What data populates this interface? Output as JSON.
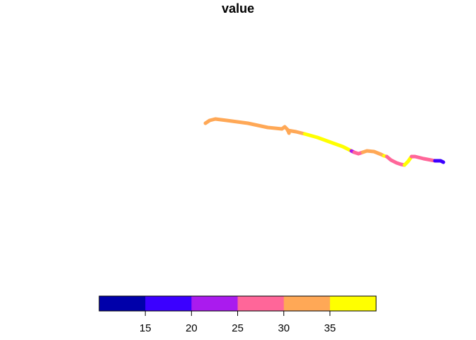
{
  "title": "value",
  "legend": {
    "breaks": [
      10,
      15,
      20,
      25,
      30,
      35,
      40
    ],
    "colors": [
      "#0000AA",
      "#3B00FF",
      "#AA1BEE",
      "#FF6699",
      "#FFA856",
      "#FFFF00"
    ],
    "tick_labels": [
      "15",
      "20",
      "25",
      "30",
      "35"
    ]
  },
  "track_colors": {
    "orange": "#FFA856",
    "yellow": "#FFFF00",
    "pink": "#FF6699",
    "purple": "#AA1BEE",
    "blue": "#3B00FF"
  }
}
